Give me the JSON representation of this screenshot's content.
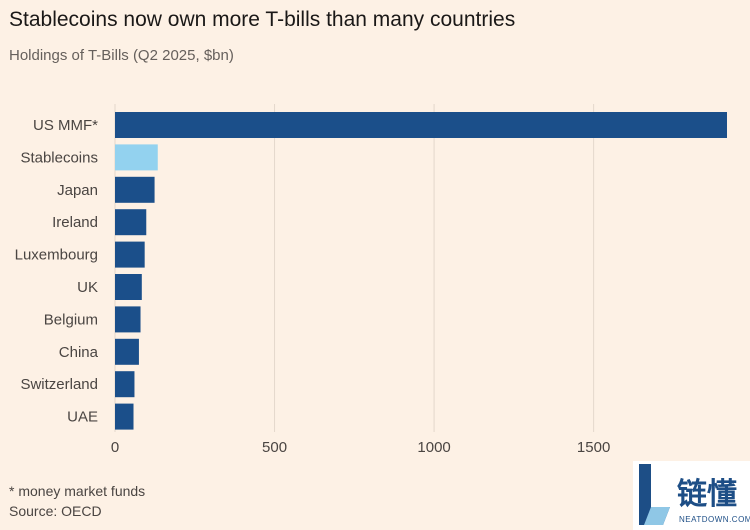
{
  "header": {
    "title": "Stablecoins now own more T-bills than many countries",
    "subtitle": "Holdings of T-Bills (Q2 2025, $bn)"
  },
  "footer": {
    "note": "* money market funds",
    "source": "Source: OECD"
  },
  "logo": {
    "cn_text": "链懂",
    "url_text": "NEATDOWN.COM",
    "dark_color": "#1d4e86",
    "light_color": "#8fc7e6"
  },
  "colors": {
    "background": "#fdf1e5",
    "bar": "#1b4f8a",
    "highlight": "#93d2ef",
    "grid": "#e4d8cc",
    "label": "#4a4542"
  },
  "chart_data": {
    "type": "bar",
    "orientation": "horizontal",
    "title": "Stablecoins now own more T-bills than many countries",
    "subtitle": "Holdings of T-Bills (Q2 2025, $bn)",
    "categories": [
      "US MMF*",
      "Stablecoins",
      "Japan",
      "Ireland",
      "Luxembourg",
      "UK",
      "Belgium",
      "China",
      "Switzerland",
      "UAE"
    ],
    "values": [
      1918,
      134,
      124,
      98,
      93,
      84,
      80,
      75,
      61,
      58
    ],
    "highlight_index": 1,
    "xlim": [
      0,
      1918
    ],
    "xticks": [
      0,
      500,
      1000,
      1500
    ],
    "xlabel": "",
    "ylabel": "",
    "grid": true
  }
}
